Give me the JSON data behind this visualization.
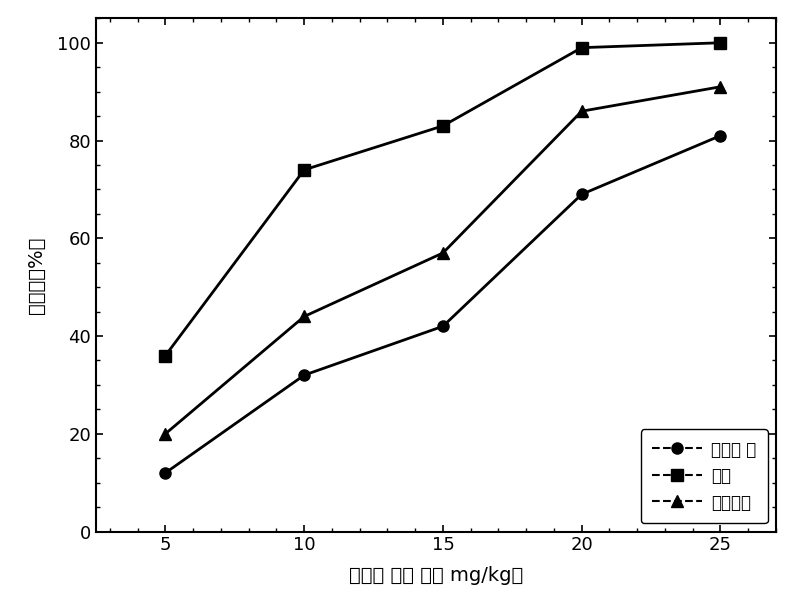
{
  "x": [
    5,
    10,
    15,
    20,
    25
  ],
  "series": [
    {
      "label": "二氯甲 烷",
      "values": [
        12,
        32,
        42,
        69,
        81
      ],
      "marker": "o",
      "color": "#000000"
    },
    {
      "label": "氯仿",
      "values": [
        36,
        74,
        83,
        99,
        100
      ],
      "marker": "s",
      "color": "#000000"
    },
    {
      "label": "四氯化碳",
      "values": [
        20,
        44,
        57,
        86,
        91
      ],
      "marker": "^",
      "color": "#000000"
    }
  ],
  "xlabel": "氯化甲 烷浓 度（ mg/kg）",
  "ylabel": "抑制率（%）",
  "xlim": [
    2.5,
    27
  ],
  "ylim": [
    0,
    105
  ],
  "xticks": [
    5,
    10,
    15,
    20,
    25
  ],
  "yticks": [
    0,
    20,
    40,
    60,
    80,
    100
  ],
  "background_color": "#ffffff",
  "legend_loc": "lower right",
  "axis_fontsize": 14,
  "legend_fontsize": 12,
  "tick_fontsize": 13,
  "linewidth": 2.0,
  "markersize": 8
}
